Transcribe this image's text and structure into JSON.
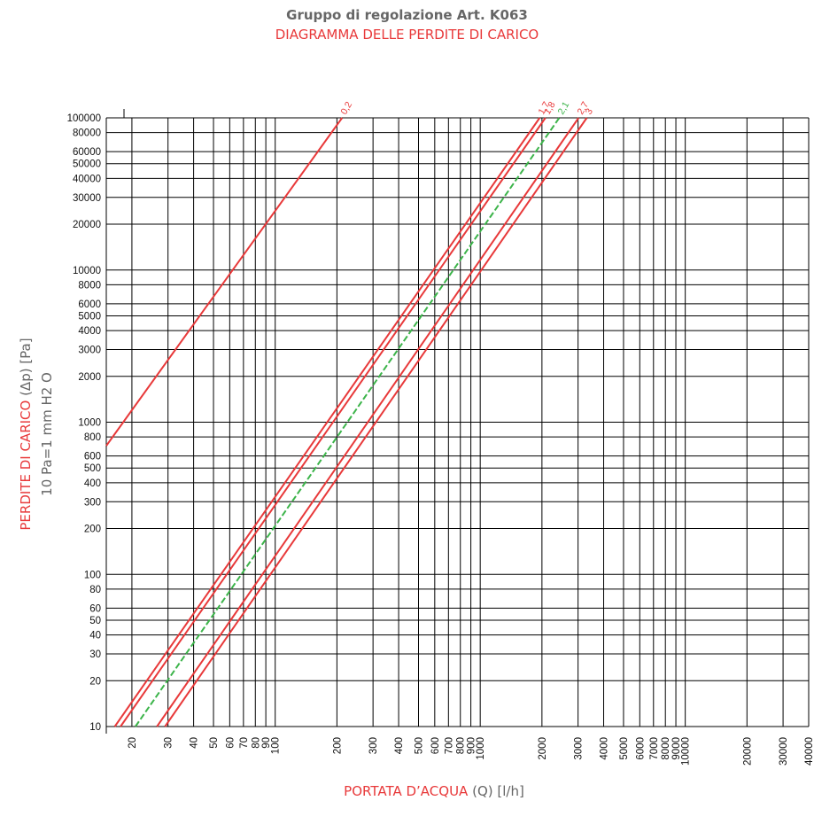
{
  "header": {
    "title": "Gruppo di regolazione Art. K063",
    "subtitle": "DIAGRAMMA DELLE PERDITE DI CARICO"
  },
  "colors": {
    "accent": "#e8393a",
    "green": "#3cb44a",
    "grid": "#000000",
    "gray": "#666666"
  },
  "chart_data": {
    "type": "line",
    "xscale": "log",
    "yscale": "log",
    "xlim": [
      15,
      40000
    ],
    "ylim": [
      10,
      100000
    ],
    "grid": true,
    "x_axis": {
      "label_colored": "PORTATA D’ACQUA",
      "label_rest": " (Q) [l/h]",
      "ticks": [
        20,
        30,
        40,
        50,
        60,
        70,
        80,
        90,
        100,
        200,
        300,
        400,
        500,
        600,
        700,
        800,
        900,
        1000,
        2000,
        3000,
        4000,
        5000,
        6000,
        7000,
        8000,
        9000,
        10000,
        20000,
        30000,
        40000
      ]
    },
    "y_axis": {
      "label_colored": "PERDITE DI CARICO",
      "label_rest": " (Δp) [Pa]",
      "label2": "10 Pa=1 mm H2 O",
      "ticks": [
        10,
        20,
        30,
        40,
        50,
        60,
        80,
        100,
        200,
        300,
        400,
        500,
        600,
        800,
        1000,
        2000,
        3000,
        4000,
        5000,
        6000,
        8000,
        10000,
        20000,
        30000,
        40000,
        50000,
        60000,
        80000,
        100000
      ]
    },
    "series": [
      {
        "name": "0,2",
        "color": "#e8393a",
        "points": [
          [
            15,
            700
          ],
          [
            212,
            100000
          ]
        ]
      },
      {
        "name": "1,7",
        "color": "#e8393a",
        "points": [
          [
            16.5,
            10
          ],
          [
            1950,
            100000
          ]
        ]
      },
      {
        "name": "1,8",
        "color": "#e8393a",
        "points": [
          [
            17.6,
            10
          ],
          [
            2080,
            100000
          ]
        ]
      },
      {
        "name": "2,1",
        "color": "#3cb44a",
        "points": [
          [
            20.8,
            10
          ],
          [
            2430,
            100000
          ]
        ]
      },
      {
        "name": "2,7",
        "color": "#e8393a",
        "points": [
          [
            26.5,
            10
          ],
          [
            3020,
            100000
          ]
        ]
      },
      {
        "name": "3",
        "color": "#e8393a",
        "points": [
          [
            29.0,
            10
          ],
          [
            3310,
            100000
          ]
        ]
      }
    ]
  }
}
